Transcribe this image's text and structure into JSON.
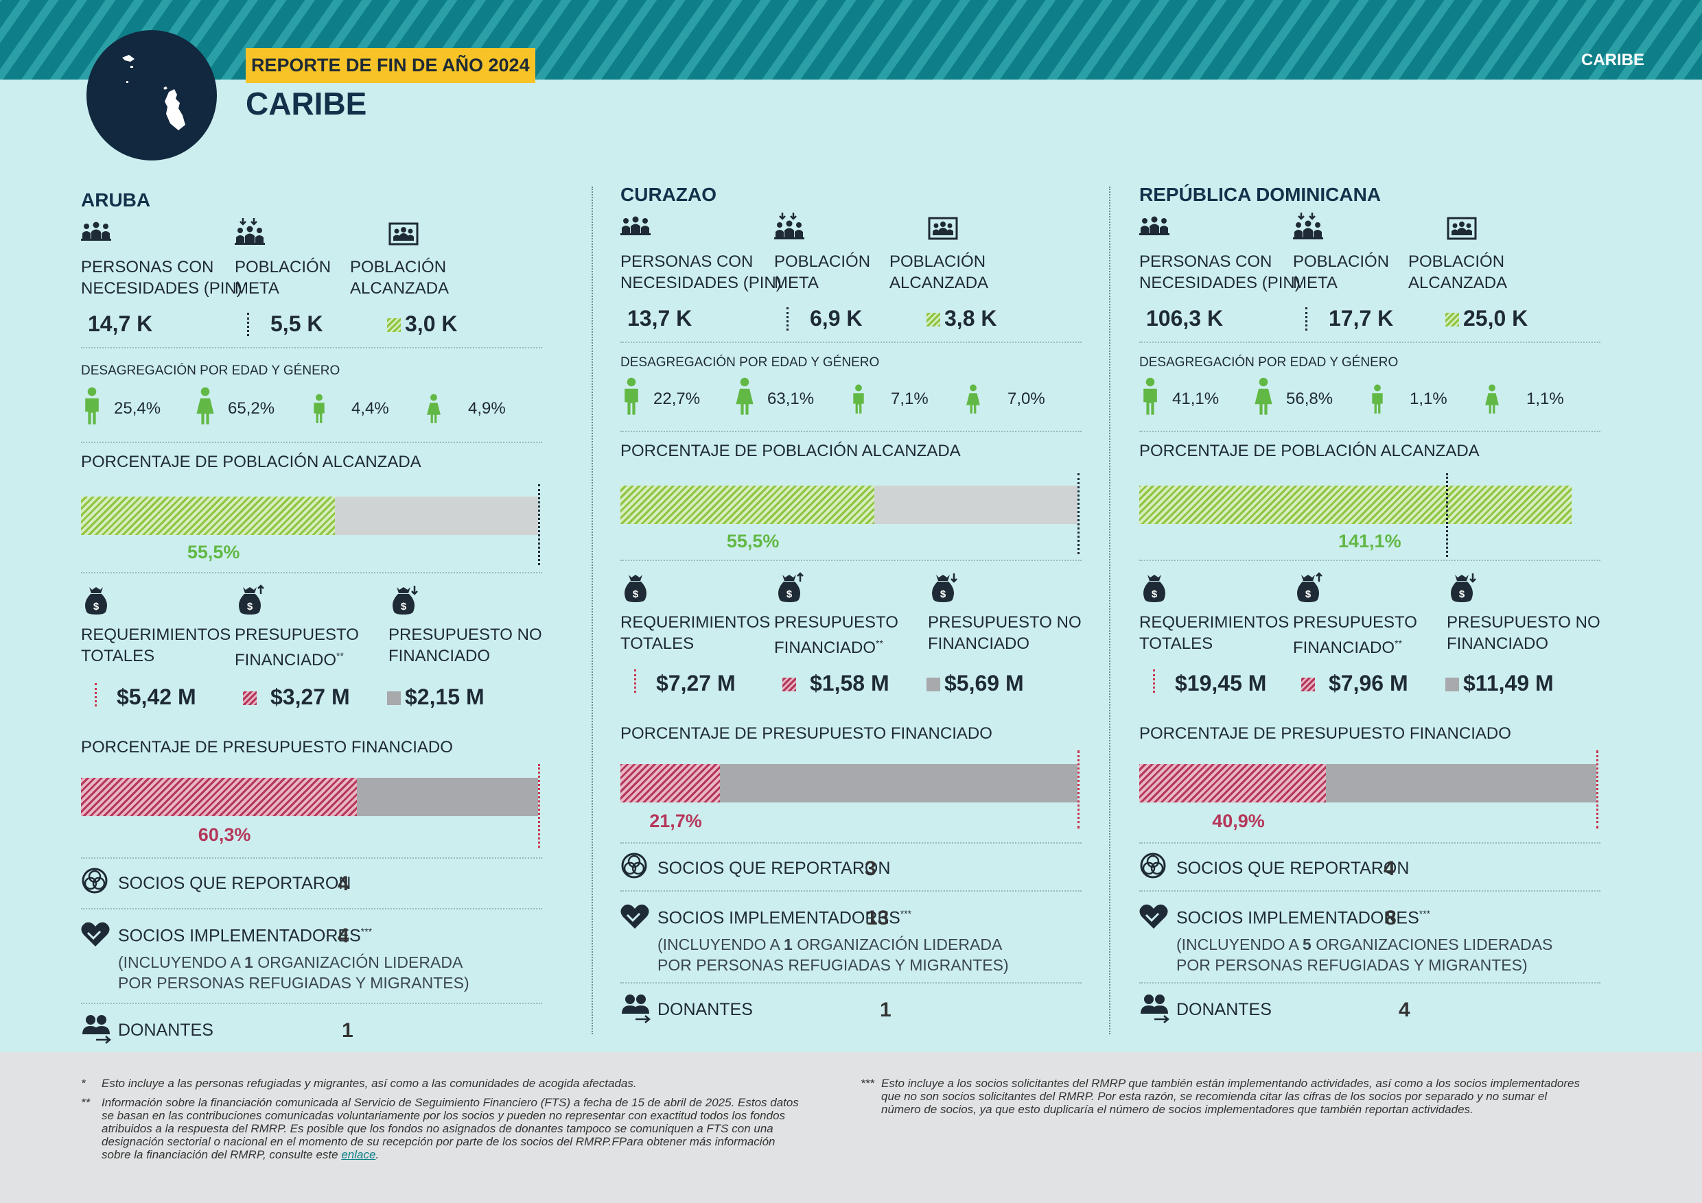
{
  "header": {
    "badge": "REPORTE DE FIN DE AÑO 2024",
    "title": "CARIBE",
    "right_label": "CARIBE"
  },
  "labels": {
    "pin": "PERSONAS CON NECESIDADES (PIN)",
    "pin_l1": "PERSONAS CON",
    "pin_l2": "NECESIDADES (PIN)",
    "meta_l1": "POBLACIÓN",
    "meta_l2": "META",
    "alc_l1": "POBLACIÓN",
    "alc_l2": "ALCANZADA",
    "disag": "DESAGREGACIÓN POR EDAD Y GÉNERO",
    "pct_pop": "PORCENTAJE DE POBLACIÓN ALCANZADA",
    "req_l1": "REQUERIMIENTOS",
    "req_l2": "TOTALES",
    "fin_l1": "PRESUPUESTO",
    "fin_l2": "FINANCIADO",
    "fin_sup": "**",
    "nofin_l1": "PRESUPUESTO NO",
    "nofin_l2": "FINANCIADO",
    "pct_fund": "PORCENTAJE DE PRESUPUESTO FINANCIADO",
    "socios_rep": "SOCIOS QUE REPORTARON",
    "socios_imp": "SOCIOS IMPLEMENTADORES",
    "socios_imp_sup": "***",
    "donantes": "DONANTES"
  },
  "countries": [
    {
      "name": "ARUBA",
      "pin": "14,7 K",
      "meta": "5,5 K",
      "alcanzada": "3,0 K",
      "men": "25,4%",
      "women": "65,2%",
      "boys": "4,4%",
      "girls": "4,9%",
      "pop_reached_pct": 55.5,
      "pop_reached_label": "55,5%",
      "req": "$5,42 M",
      "funded": "$3,27 M",
      "unfunded": "$2,15 M",
      "funded_pct": 60.3,
      "funded_pct_label": "60,3%",
      "socios_rep": "4",
      "socios_imp": "4",
      "note_l1a": "(INCLUYENDO A ",
      "note_num": "1",
      "note_l1b": " ORGANIZACIÓN LIDERADA",
      "note_l2": "POR PERSONAS REFUGIADAS Y MIGRANTES)",
      "donantes": "1"
    },
    {
      "name": "CURAZAO",
      "pin": "13,7 K",
      "meta": "6,9 K",
      "alcanzada": "3,8 K",
      "men": "22,7%",
      "women": "63,1%",
      "boys": "7,1%",
      "girls": "7,0%",
      "pop_reached_pct": 55.5,
      "pop_reached_label": "55,5%",
      "req": "$7,27 M",
      "funded": "$1,58 M",
      "unfunded": "$5,69 M",
      "funded_pct": 21.7,
      "funded_pct_label": "21,7%",
      "socios_rep": "3",
      "socios_imp": "13",
      "note_l1a": "(INCLUYENDO A ",
      "note_num": "1",
      "note_l1b": " ORGANIZACIÓN LIDERADA",
      "note_l2": "POR PERSONAS REFUGIADAS Y MIGRANTES)",
      "donantes": "1"
    },
    {
      "name": "REPÚBLICA DOMINICANA",
      "pin": "106,3 K",
      "meta": "17,7 K",
      "alcanzada": "25,0 K",
      "men": "41,1%",
      "women": "56,8%",
      "boys": "1,1%",
      "girls": "1,1%",
      "pop_reached_pct": 141.1,
      "pop_reached_label": "141,1%",
      "req": "$19,45 M",
      "funded": "$7,96 M",
      "unfunded": "$11,49 M",
      "funded_pct": 40.9,
      "funded_pct_label": "40,9%",
      "socios_rep": "4",
      "socios_imp": "8",
      "note_l1a": "(INCLUYENDO A ",
      "note_num": "5",
      "note_l1b": " ORGANIZACIONES LIDERADAS",
      "note_l2": "POR PERSONAS REFUGIADAS Y MIGRANTES)",
      "donantes": "4"
    }
  ],
  "footnotes": {
    "f1_mark": "*",
    "f1": "Esto incluye a las personas refugiadas y migrantes, así como a las comunidades de acogida afectadas.",
    "f2_mark": "**",
    "f2_l1": "Información sobre la financiación comunicada al Servicio de Seguimiento Financiero (FTS) a fecha de 15 de abril de 2025. Estos datos",
    "f2_l2": "se basan en las contribuciones comunicadas voluntariamente por los socios y pueden no representar con exactitud todos los fondos",
    "f2_l3": "atribuidos a la respuesta del RMRP. Es posible que los fondos no asignados de donantes tampoco se comuniquen a FTS con una",
    "f2_l4": "designación sectorial o nacional en el momento de su recepción por parte de los socios del RMRP.FPara obtener más información",
    "f2_l5a": "sobre la financiación del RMRP, consulte este ",
    "f2_link": "enlace",
    "f2_l5b": ".",
    "f3_mark": "***",
    "f3_l1": "Esto incluye a los socios solicitantes del RMRP que también están implementando actividades, así como a los socios implementadores",
    "f3_l2": "que no son socios solicitantes del RMRP. Por esta razón, se recomienda citar las cifras de los socios por separado y no sumar el",
    "f3_l3": "número de socios, ya que esto duplicaría el número de socios implementadores que también reportan actividades."
  },
  "colors": {
    "teal": "#0e7f88",
    "background": "#cdeeef",
    "green": "#62b845",
    "red": "#b5375a",
    "yellow": "#f7c327",
    "navy": "#14304a"
  }
}
